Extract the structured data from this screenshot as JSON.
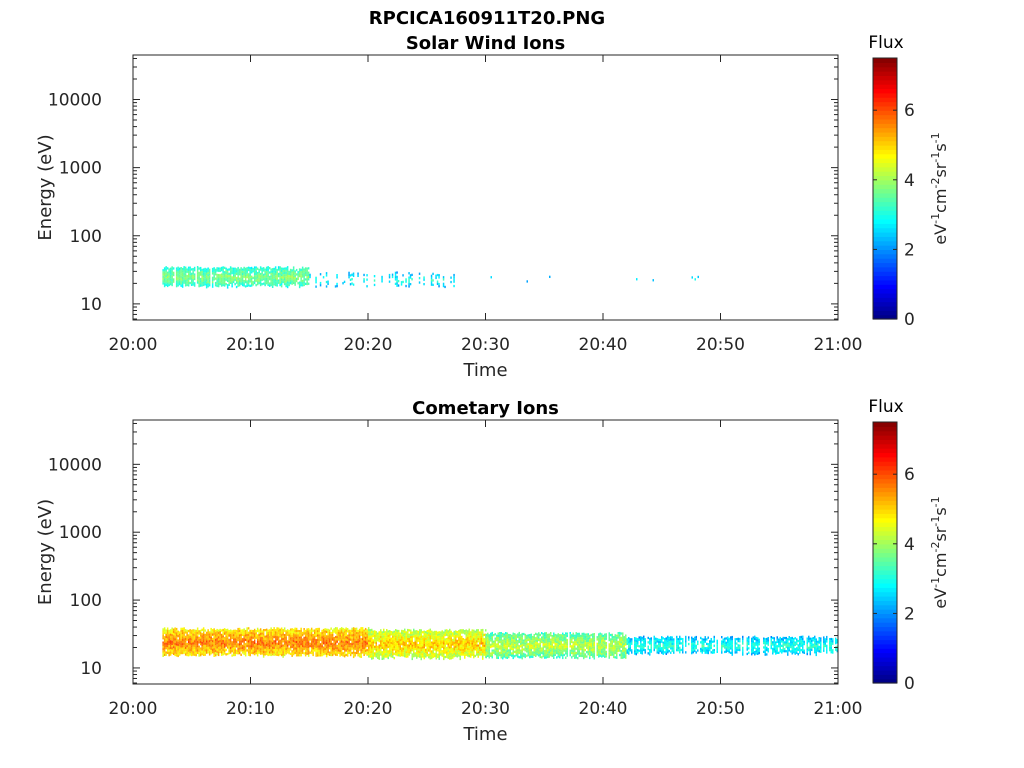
{
  "figure": {
    "title": "RPCICA160911T20.PNG"
  },
  "colorscale": {
    "stops": [
      "#00007f",
      "#0000ff",
      "#007fff",
      "#00ffff",
      "#7fff7f",
      "#ffff00",
      "#ff7f00",
      "#ff0000",
      "#7f0000"
    ],
    "range": [
      0,
      7.5
    ],
    "ticks": [
      "0",
      "2",
      "4",
      "6"
    ],
    "label": "Flux",
    "unit_base": "eV",
    "unit_parts": [
      {
        "t": "eV",
        "s": false
      },
      {
        "t": "-1",
        "s": true
      },
      {
        "t": "cm",
        "s": false
      },
      {
        "t": "-2",
        "s": true
      },
      {
        "t": "sr",
        "s": false
      },
      {
        "t": "-1",
        "s": true
      },
      {
        "t": "s",
        "s": false
      },
      {
        "t": "-1",
        "s": true
      }
    ]
  },
  "chart_data": [
    {
      "type": "heatmap",
      "title": "Solar Wind Ions",
      "xlabel": "Time",
      "ylabel": "Energy (eV)",
      "x_ticks": [
        "20:00",
        "20:10",
        "20:20",
        "20:30",
        "20:40",
        "20:50",
        "21:00"
      ],
      "x_range_minutes": [
        0,
        60
      ],
      "y_scale": "log",
      "y_ticks": [
        "10",
        "100",
        "1000",
        "10000"
      ],
      "y_range": [
        5.8,
        45000
      ],
      "grid": false,
      "band": {
        "t_start": 2.5,
        "segments": [
          {
            "t0": 2.5,
            "t1": 15,
            "e_low": 18,
            "e_high": 36,
            "flux": [
              3.8,
              4.2
            ],
            "density": 0.95
          },
          {
            "t0": 15,
            "t1": 28,
            "e_low": 18,
            "e_high": 30,
            "flux": [
              3.0,
              3.4
            ],
            "density": 0.45
          },
          {
            "t0": 28,
            "t1": 50,
            "e_low": 20,
            "e_high": 28,
            "flux": [
              2.8,
              3.2
            ],
            "density": 0.12
          }
        ]
      }
    },
    {
      "type": "heatmap",
      "title": "Cometary Ions",
      "xlabel": "Time",
      "ylabel": "Energy (eV)",
      "x_ticks": [
        "20:00",
        "20:10",
        "20:20",
        "20:30",
        "20:40",
        "20:50",
        "21:00"
      ],
      "x_range_minutes": [
        0,
        60
      ],
      "y_scale": "log",
      "y_ticks": [
        "10",
        "100",
        "1000",
        "10000"
      ],
      "y_range": [
        5.8,
        45000
      ],
      "grid": false,
      "band": {
        "t_start": 2.5,
        "segments": [
          {
            "t0": 2.5,
            "t1": 20,
            "e_low": 15,
            "e_high": 40,
            "flux": [
              5.4,
              6.2
            ],
            "density": 1.0
          },
          {
            "t0": 20,
            "t1": 30,
            "e_low": 14,
            "e_high": 38,
            "flux": [
              4.8,
              5.6
            ],
            "density": 1.0
          },
          {
            "t0": 30,
            "t1": 42,
            "e_low": 14,
            "e_high": 34,
            "flux": [
              4.0,
              4.8
            ],
            "density": 0.95
          },
          {
            "t0": 42,
            "t1": 60,
            "e_low": 16,
            "e_high": 30,
            "flux": [
              3.0,
              3.6
            ],
            "density": 0.85
          }
        ]
      }
    }
  ]
}
